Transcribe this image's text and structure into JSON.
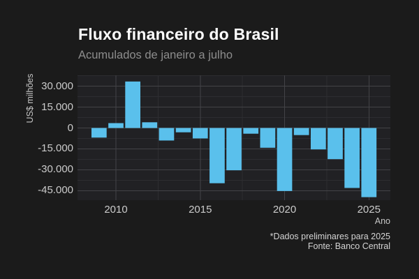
{
  "chart_data": {
    "type": "bar",
    "title": "Fluxo financeiro do Brasil",
    "subtitle": "Acumulados de janeiro a julho",
    "xlabel": "Ano",
    "ylabel": "US$ milhões",
    "caption": [
      "*Dados preliminares para 2025",
      "Fonte: Banco Central"
    ],
    "unit": "US$ milhões",
    "categories": [
      2009,
      2010,
      2011,
      2012,
      2013,
      2014,
      2015,
      2016,
      2017,
      2018,
      2019,
      2020,
      2021,
      2022,
      2023,
      2024,
      2025
    ],
    "values": [
      -6900,
      3500,
      33400,
      4100,
      -9000,
      -3100,
      -7500,
      -39700,
      -30400,
      -4100,
      -14200,
      -45300,
      -5100,
      -15400,
      -22400,
      -43100,
      -49700
    ],
    "x_ticks": [
      {
        "value": 2010,
        "label": "2010"
      },
      {
        "value": 2015,
        "label": "2015"
      },
      {
        "value": 2020,
        "label": "2020"
      },
      {
        "value": 2025,
        "label": "2025"
      }
    ],
    "y_ticks": [
      {
        "value": 30000,
        "label": "30.000"
      },
      {
        "value": 15000,
        "label": "15.000"
      },
      {
        "value": 0,
        "label": "0"
      },
      {
        "value": -15000,
        "label": "-15.000"
      },
      {
        "value": -30000,
        "label": "-30.000"
      },
      {
        "value": -45000,
        "label": "-45.000"
      }
    ],
    "x_minor": [
      2012.5,
      2017.5,
      2022.5
    ],
    "y_minor": [
      37500,
      22500,
      7500,
      -7500,
      -22500,
      -37500
    ],
    "xlim": [
      2007.7,
      2026.3
    ],
    "ylim": [
      -51900,
      37850
    ],
    "grid": true,
    "legend": false,
    "bar_color": "#5ac0ec",
    "colors": {
      "background": "#1b1b1b",
      "panel_background": "#212124",
      "grid_major": "#434347",
      "grid_minor": "#2d2d31",
      "title": "#ffffff",
      "subtitle": "#8d8d8d",
      "tick_labels": "#cbcbcb"
    }
  }
}
